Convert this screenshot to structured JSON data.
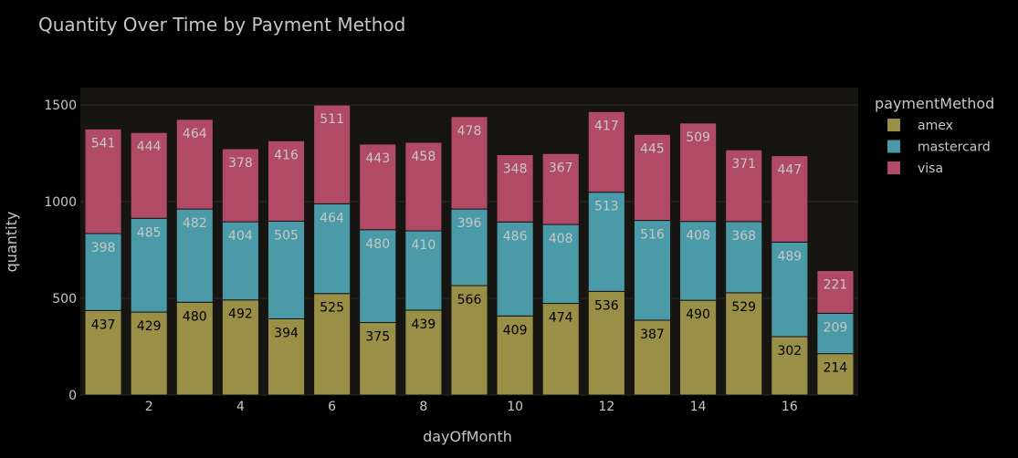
{
  "chart_data": {
    "type": "bar",
    "stacked": true,
    "title": "Quantity Over Time by Payment Method",
    "xlabel": "dayOfMonth",
    "ylabel": "quantity",
    "x": [
      1,
      2,
      3,
      4,
      5,
      6,
      7,
      8,
      9,
      10,
      11,
      12,
      13,
      14,
      15,
      16,
      17
    ],
    "x_ticks": [
      2,
      4,
      6,
      8,
      10,
      12,
      14,
      16
    ],
    "y_ticks": [
      0,
      500,
      1000,
      1500
    ],
    "ylim": [
      0,
      1590
    ],
    "xlim": [
      0.5,
      17.5
    ],
    "grid": true,
    "legend_title": "paymentMethod",
    "legend_position": "top-right",
    "series": [
      {
        "name": "amex",
        "color": "#9a8f46",
        "label_color": "#000000",
        "values": [
          437,
          429,
          480,
          492,
          394,
          525,
          375,
          439,
          566,
          409,
          474,
          536,
          387,
          490,
          529,
          302,
          214
        ]
      },
      {
        "name": "mastercard",
        "color": "#4a9aa8",
        "label_color": "#c7c7c7",
        "values": [
          398,
          485,
          482,
          404,
          505,
          464,
          480,
          410,
          396,
          486,
          408,
          513,
          516,
          408,
          368,
          489,
          209
        ]
      },
      {
        "name": "visa",
        "color": "#b04a66",
        "label_color": "#c7c7c7",
        "values": [
          541,
          444,
          464,
          378,
          416,
          511,
          443,
          458,
          478,
          348,
          367,
          417,
          445,
          509,
          371,
          447,
          221
        ]
      }
    ],
    "colors": {
      "page_background": "#000000",
      "plot_background": "#171512",
      "grid": "#2b2b2b",
      "text": "#c7c7c7",
      "bar_outline": "#171512"
    }
  }
}
